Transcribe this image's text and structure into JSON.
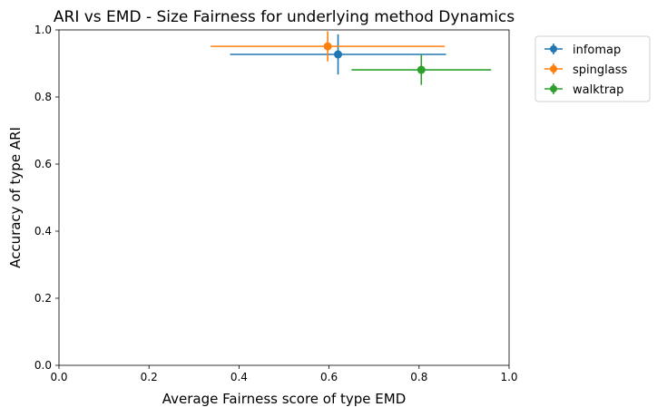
{
  "chart_data": {
    "type": "scatter",
    "title": "ARI vs EMD - Size Fairness for underlying method Dynamics",
    "xlabel": "Average Fairness score of type EMD",
    "ylabel": "Accuracy of type ARI",
    "xlim": [
      0.0,
      1.0
    ],
    "ylim": [
      0.0,
      1.0
    ],
    "xticks": [
      "0.0",
      "0.2",
      "0.4",
      "0.6",
      "0.8",
      "1.0"
    ],
    "yticks": [
      "0.0",
      "0.2",
      "0.4",
      "0.6",
      "0.8",
      "1.0"
    ],
    "grid": false,
    "legend_position": "outside-top-right",
    "series": [
      {
        "name": "infomap",
        "color": "#1f77b4",
        "x": 0.62,
        "y": 0.927,
        "xerr": 0.24,
        "yerr": 0.06
      },
      {
        "name": "spinglass",
        "color": "#ff7f0e",
        "x": 0.597,
        "y": 0.951,
        "xerr": 0.26,
        "yerr": 0.045
      },
      {
        "name": "walktrap",
        "color": "#2ca02c",
        "x": 0.805,
        "y": 0.881,
        "xerr": 0.155,
        "yerr": 0.045
      }
    ]
  }
}
